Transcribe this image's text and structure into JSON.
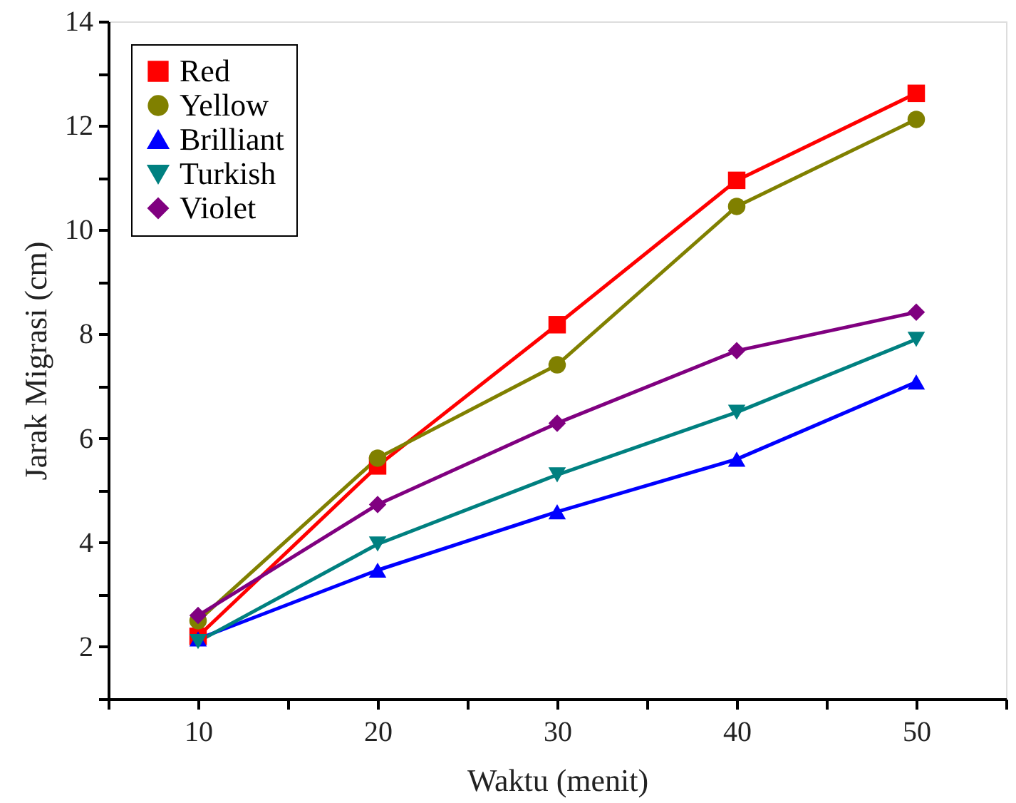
{
  "chart_data": {
    "type": "line",
    "xlabel": "Waktu (menit)",
    "ylabel": "Jarak Migrasi (cm)",
    "x": [
      10,
      20,
      30,
      40,
      50
    ],
    "series": [
      {
        "name": "Red",
        "color": "#ff0000",
        "marker": "square",
        "values": [
          2.2,
          5.47,
          8.18,
          10.95,
          12.62
        ]
      },
      {
        "name": "Yellow",
        "color": "#808000",
        "marker": "circle",
        "values": [
          2.5,
          5.62,
          7.41,
          10.45,
          12.12
        ]
      },
      {
        "name": "Brilliant",
        "color": "#0000ff",
        "marker": "triangle",
        "values": [
          2.15,
          3.47,
          4.59,
          5.6,
          7.08
        ]
      },
      {
        "name": "Turkish",
        "color": "#008080",
        "marker": "triangle-down",
        "values": [
          2.1,
          3.97,
          5.3,
          6.5,
          7.9
        ]
      },
      {
        "name": "Violet",
        "color": "#800080",
        "marker": "diamond",
        "values": [
          2.6,
          4.73,
          6.29,
          7.68,
          8.42
        ]
      }
    ],
    "xlim": [
      5,
      55
    ],
    "xticks": [
      {
        "value": 5,
        "label": null
      },
      10,
      {
        "value": 15,
        "label": null
      },
      20,
      {
        "value": 25,
        "label": null
      },
      30,
      {
        "value": 35,
        "label": null
      },
      40,
      {
        "value": 45,
        "label": null
      },
      50,
      {
        "value": 55,
        "label": null
      }
    ],
    "ylim": [
      1,
      14
    ],
    "yticks": [
      {
        "value": 1,
        "label": null
      },
      2,
      {
        "value": 3,
        "label": null
      },
      4,
      {
        "value": 5,
        "label": null
      },
      6,
      {
        "value": 7,
        "label": null
      },
      8,
      {
        "value": 9,
        "label": null
      },
      10,
      {
        "value": 11,
        "label": null
      },
      12,
      {
        "value": 13,
        "label": null
      },
      14
    ],
    "legend": "top left",
    "grid": false,
    "line_style": "solid"
  }
}
